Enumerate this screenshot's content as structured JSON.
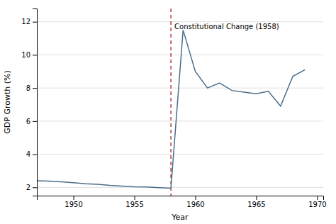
{
  "chart_data": {
    "type": "line",
    "x_label": "Year",
    "y_label": "GDP Growth (%)",
    "x": [
      1947,
      1948,
      1949,
      1950,
      1951,
      1952,
      1953,
      1954,
      1955,
      1956,
      1957,
      1958,
      1959,
      1960,
      1961,
      1962,
      1963,
      1964,
      1965,
      1966,
      1967,
      1968,
      1969
    ],
    "values": [
      2.4,
      2.38,
      2.33,
      2.28,
      2.22,
      2.18,
      2.12,
      2.08,
      2.04,
      2.02,
      1.98,
      1.95,
      11.5,
      9.0,
      8.0,
      8.3,
      7.85,
      7.75,
      7.65,
      7.8,
      6.9,
      8.7,
      9.1
    ],
    "color": "#4a6e8a",
    "xlim": [
      1947,
      1970.5
    ],
    "ylim": [
      1.5,
      12.8
    ],
    "xticks": [
      1950,
      1955,
      1960,
      1965,
      1970
    ],
    "yticks": [
      2,
      4,
      6,
      8,
      10,
      12
    ],
    "grid": "y",
    "vlines": [
      {
        "x": 1958,
        "color": "#b03030",
        "line_style": "dashed"
      }
    ],
    "annotations": [
      {
        "text": "Constitutional Change (1958)",
        "x": 1958,
        "y": 11.9
      }
    ]
  }
}
